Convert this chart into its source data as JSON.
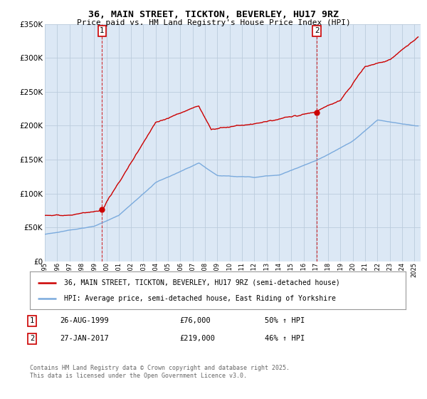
{
  "title": "36, MAIN STREET, TICKTON, BEVERLEY, HU17 9RZ",
  "subtitle": "Price paid vs. HM Land Registry's House Price Index (HPI)",
  "legend_line1": "36, MAIN STREET, TICKTON, BEVERLEY, HU17 9RZ (semi-detached house)",
  "legend_line2": "HPI: Average price, semi-detached house, East Riding of Yorkshire",
  "footer": "Contains HM Land Registry data © Crown copyright and database right 2025.\nThis data is licensed under the Open Government Licence v3.0.",
  "transaction1": {
    "num": "1",
    "date": "26-AUG-1999",
    "price": "£76,000",
    "hpi": "50% ↑ HPI"
  },
  "transaction2": {
    "num": "2",
    "date": "27-JAN-2017",
    "price": "£219,000",
    "hpi": "46% ↑ HPI"
  },
  "ylim": [
    0,
    350000
  ],
  "xlim": [
    1995,
    2025.5
  ],
  "red_color": "#cc0000",
  "blue_color": "#7aaadd",
  "chart_bg": "#dce8f5",
  "background_color": "#ffffff",
  "grid_color": "#bbccdd",
  "point1_x": 1999.65,
  "point1_y": 76000,
  "point2_x": 2017.07,
  "point2_y": 219000
}
